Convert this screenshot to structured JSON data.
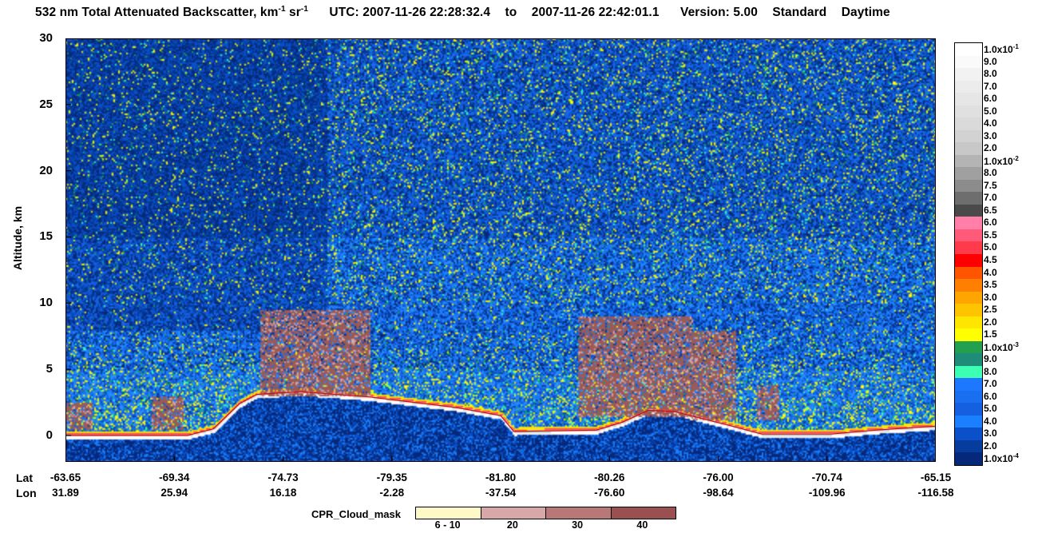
{
  "header": {
    "title": "532 nm Total Attenuated Backscatter, km",
    "title_sup1": "-1",
    "title_mid": " sr",
    "title_sup2": "-1",
    "utc_label": "UTC:",
    "utc_start": "2007-11-26 22:28:32.4",
    "to_label": "to",
    "utc_end": "2007-11-26 22:42:01.1",
    "version_label": "Version: 5.00",
    "product": "Standard",
    "daytime": "Daytime"
  },
  "chart_data": {
    "type": "heatmap",
    "ylabel": "Altitude, km",
    "ylim": [
      -2,
      30
    ],
    "yticks": [
      "30",
      "25",
      "20",
      "15",
      "10",
      "5",
      "0"
    ],
    "ytick_values": [
      30,
      25,
      20,
      15,
      10,
      5,
      0
    ],
    "x_row_labels": [
      "Lat",
      "Lon"
    ],
    "x_ticks": [
      {
        "lat": "-63.65",
        "lon": "31.89"
      },
      {
        "lat": "-69.34",
        "lon": "25.94"
      },
      {
        "lat": "-74.73",
        "lon": "16.18"
      },
      {
        "lat": "-79.35",
        "lon": "-2.28"
      },
      {
        "lat": "-81.80",
        "lon": "-37.54"
      },
      {
        "lat": "-80.26",
        "lon": "-76.60"
      },
      {
        "lat": "-76.00",
        "lon": "-98.64"
      },
      {
        "lat": "-70.74",
        "lon": "-109.96"
      },
      {
        "lat": "-65.15",
        "lon": "-116.58"
      }
    ],
    "surface_altitude_km": [
      {
        "i": 0.0,
        "alt": 0.0
      },
      {
        "i": 0.14,
        "alt": 0.0
      },
      {
        "i": 0.17,
        "alt": 0.5
      },
      {
        "i": 0.2,
        "alt": 2.4
      },
      {
        "i": 0.22,
        "alt": 3.1
      },
      {
        "i": 0.27,
        "alt": 3.3
      },
      {
        "i": 0.35,
        "alt": 2.9
      },
      {
        "i": 0.45,
        "alt": 2.1
      },
      {
        "i": 0.5,
        "alt": 1.5
      },
      {
        "i": 0.515,
        "alt": 0.3
      },
      {
        "i": 0.61,
        "alt": 0.4
      },
      {
        "i": 0.64,
        "alt": 1.0
      },
      {
        "i": 0.67,
        "alt": 1.9
      },
      {
        "i": 0.7,
        "alt": 1.8
      },
      {
        "i": 0.76,
        "alt": 0.8
      },
      {
        "i": 0.8,
        "alt": 0.1
      },
      {
        "i": 0.88,
        "alt": 0.1
      },
      {
        "i": 0.93,
        "alt": 0.4
      },
      {
        "i": 1.0,
        "alt": 0.7
      }
    ],
    "colorbar": {
      "segments": [
        {
          "label": "1.0x10",
          "sup": "-1",
          "color": "#ffffff"
        },
        {
          "label": "9.0",
          "color": "#fafafa"
        },
        {
          "label": "8.0",
          "color": "#f2f2f2"
        },
        {
          "label": "7.0",
          "color": "#ececec"
        },
        {
          "label": "6.0",
          "color": "#e6e6e6"
        },
        {
          "label": "5.0",
          "color": "#e0e0e0"
        },
        {
          "label": "4.0",
          "color": "#dadada"
        },
        {
          "label": "3.0",
          "color": "#d2d2d2"
        },
        {
          "label": "2.0",
          "color": "#c8c8c8"
        },
        {
          "label": "1.0x10",
          "sup": "-2",
          "color": "#b4b4b4"
        },
        {
          "label": "8.0",
          "color": "#a0a0a0"
        },
        {
          "label": "7.5",
          "color": "#8c8c8c"
        },
        {
          "label": "7.0",
          "color": "#6e6e6e"
        },
        {
          "label": "6.5",
          "color": "#4a4a4a"
        },
        {
          "label": "6.0",
          "color": "#ff7fa8"
        },
        {
          "label": "5.5",
          "color": "#ff5a7a"
        },
        {
          "label": "5.0",
          "color": "#ff3a4a"
        },
        {
          "label": "4.5",
          "color": "#ff0000"
        },
        {
          "label": "4.0",
          "color": "#ff5500"
        },
        {
          "label": "3.5",
          "color": "#ff7f00"
        },
        {
          "label": "3.0",
          "color": "#ffa500"
        },
        {
          "label": "2.5",
          "color": "#ffc400"
        },
        {
          "label": "2.0",
          "color": "#ffe600"
        },
        {
          "label": "1.5",
          "color": "#ffff00"
        },
        {
          "label": "1.0x10",
          "sup": "-3",
          "color": "#22a050"
        },
        {
          "label": "9.0",
          "color": "#1e8c78"
        },
        {
          "label": "8.0",
          "color": "#3cffb4"
        },
        {
          "label": "7.0",
          "color": "#1e78ff"
        },
        {
          "label": "6.0",
          "color": "#1a6ef0"
        },
        {
          "label": "5.0",
          "color": "#1560e0"
        },
        {
          "label": "4.0",
          "color": "#1a80ff"
        },
        {
          "label": "3.0",
          "color": "#0a50c8"
        },
        {
          "label": "2.0",
          "color": "#063c9c"
        },
        {
          "label": "1.0x10",
          "sup": "-4",
          "color": "#05287a"
        }
      ]
    },
    "cpr_legend": {
      "title": "CPR_Cloud_mask",
      "items": [
        {
          "label": "6 - 10",
          "color": "#fff9c8"
        },
        {
          "label": "20",
          "color": "#d8a8a8"
        },
        {
          "label": "30",
          "color": "#b87878"
        },
        {
          "label": "40",
          "color": "#9a5050"
        }
      ]
    }
  }
}
